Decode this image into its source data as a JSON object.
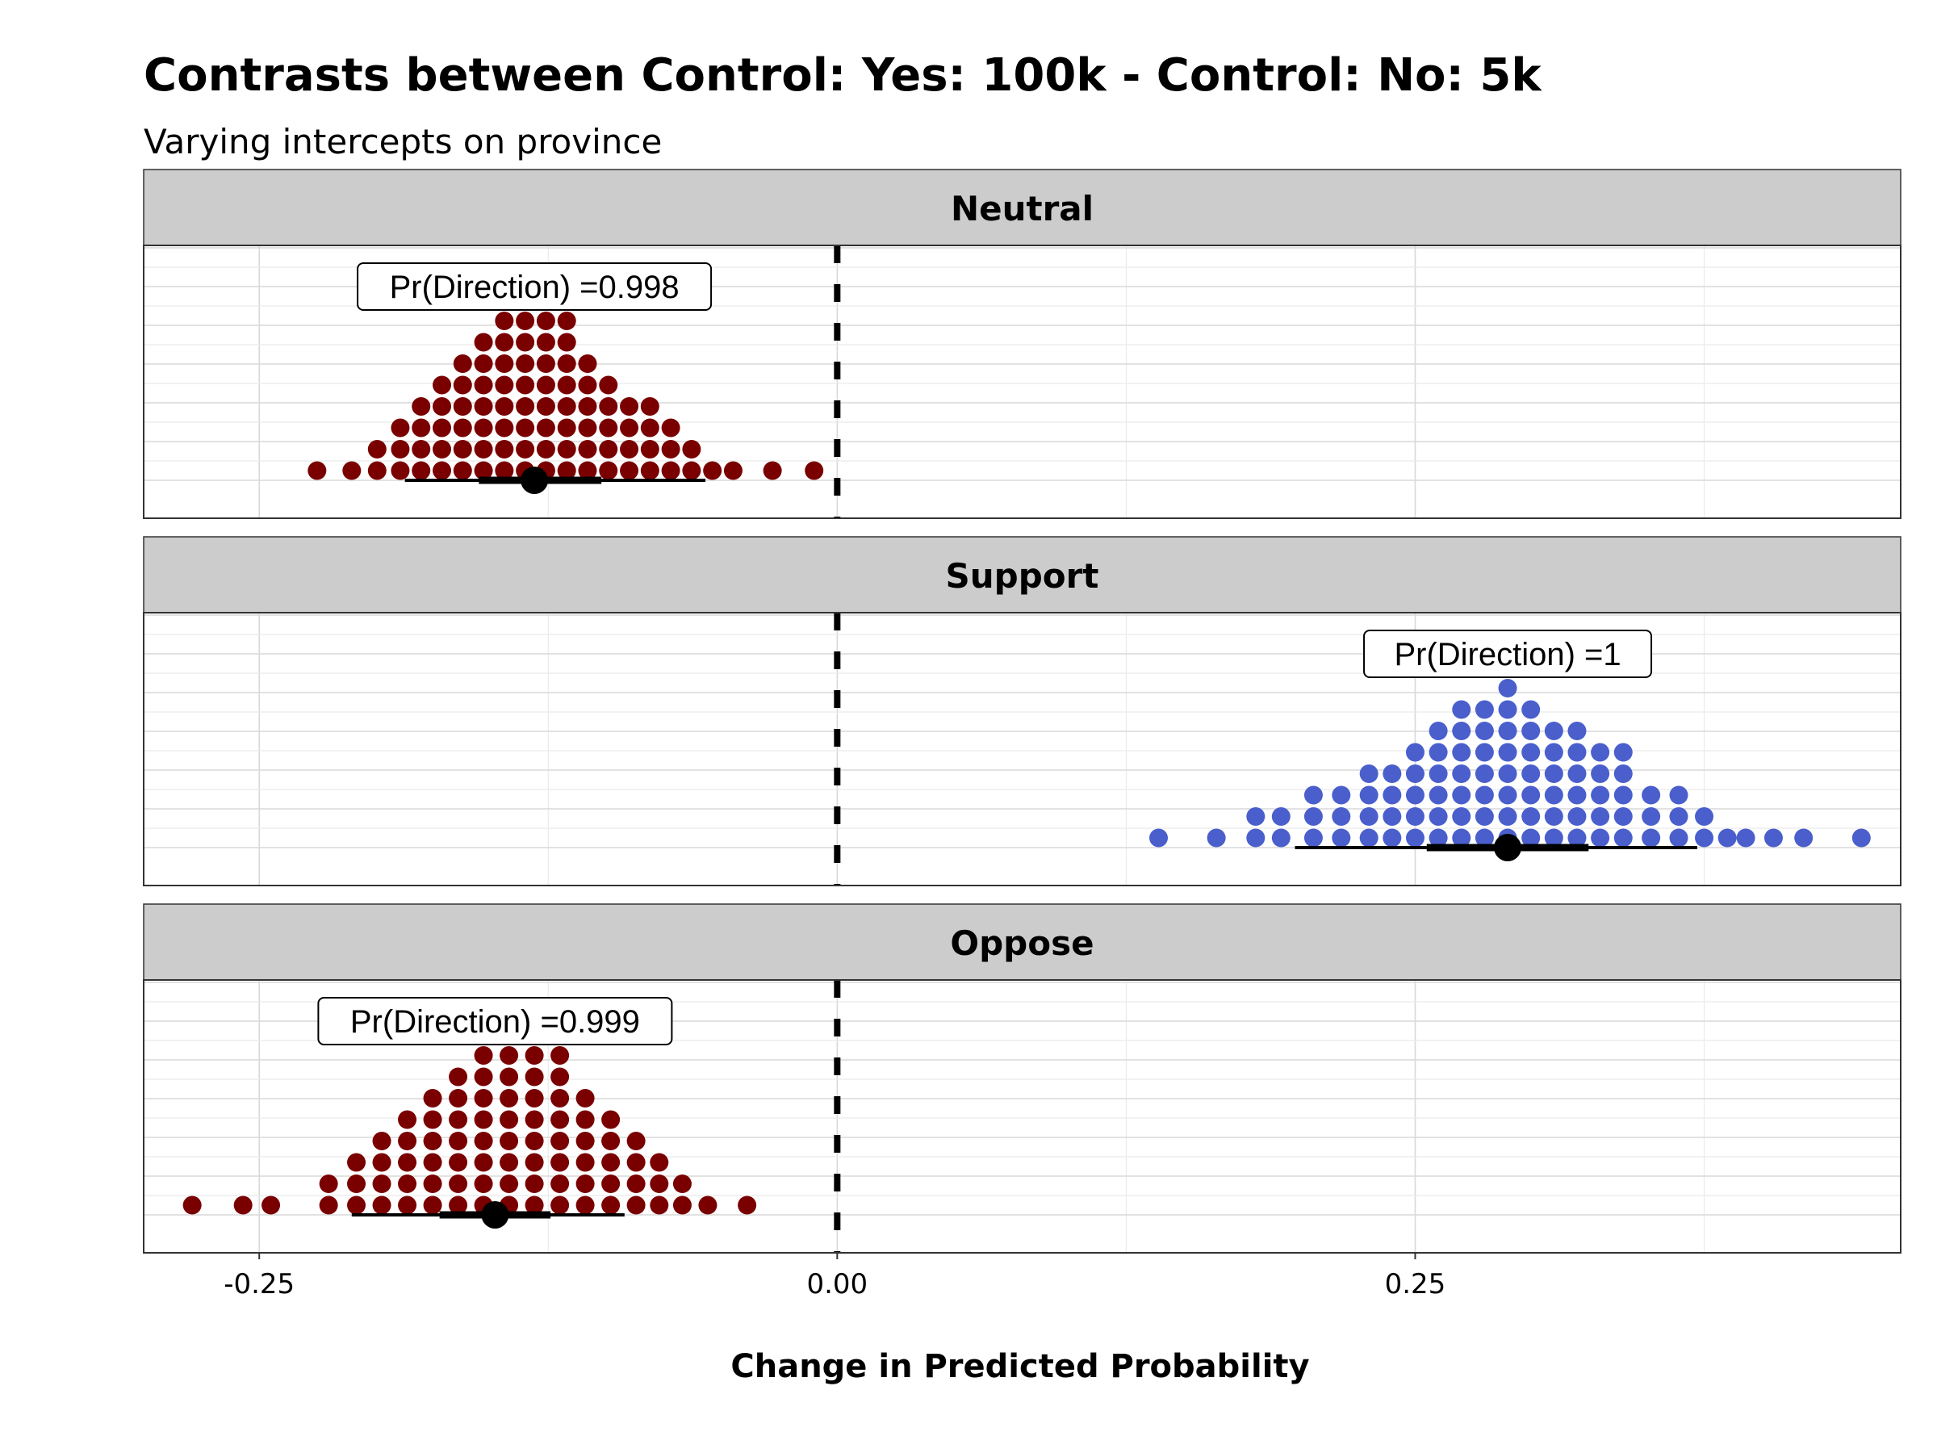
{
  "chart_data": {
    "type": "dotplot",
    "title": "Contrasts between Control: Yes: 100k - Control: No: 5k",
    "subtitle": "Varying intercepts on province",
    "xlabel": "Change in Predicted Probability",
    "xlim": [
      -0.3,
      0.46
    ],
    "x_ticks": [
      -0.25,
      0.0,
      0.25
    ],
    "x_tick_labels": [
      "-0.25",
      "0.00",
      "0.25"
    ],
    "reference_line": 0,
    "grid": true,
    "colors": {
      "negative": "#7A0000",
      "positive": "#4A5FCC",
      "strip_bg": "#CCCCCC",
      "point": "#000000"
    },
    "panels": [
      {
        "label": "Neutral",
        "annotation": "Pr(Direction) =0.998",
        "annotation_x": -0.131,
        "color": "negative",
        "median": -0.131,
        "interval_inner": [
          -0.155,
          -0.102
        ],
        "interval_outer": [
          -0.187,
          -0.057
        ],
        "dot_bins": [
          {
            "x": -0.225,
            "n": 1
          },
          {
            "x": -0.21,
            "n": 1
          },
          {
            "x": -0.199,
            "n": 2
          },
          {
            "x": -0.189,
            "n": 3
          },
          {
            "x": -0.18,
            "n": 4
          },
          {
            "x": -0.171,
            "n": 5
          },
          {
            "x": -0.162,
            "n": 6
          },
          {
            "x": -0.153,
            "n": 7
          },
          {
            "x": -0.144,
            "n": 8
          },
          {
            "x": -0.135,
            "n": 8
          },
          {
            "x": -0.126,
            "n": 8
          },
          {
            "x": -0.117,
            "n": 8
          },
          {
            "x": -0.108,
            "n": 6
          },
          {
            "x": -0.099,
            "n": 5
          },
          {
            "x": -0.09,
            "n": 4
          },
          {
            "x": -0.081,
            "n": 4
          },
          {
            "x": -0.072,
            "n": 3
          },
          {
            "x": -0.063,
            "n": 2
          },
          {
            "x": -0.054,
            "n": 1
          },
          {
            "x": -0.045,
            "n": 1
          },
          {
            "x": -0.028,
            "n": 1
          },
          {
            "x": -0.01,
            "n": 1
          }
        ]
      },
      {
        "label": "Support",
        "annotation": "Pr(Direction) =1",
        "annotation_x": 0.29,
        "color": "positive",
        "median": 0.29,
        "interval_inner": [
          0.255,
          0.325
        ],
        "interval_outer": [
          0.198,
          0.372
        ],
        "dot_bins": [
          {
            "x": 0.139,
            "n": 1
          },
          {
            "x": 0.164,
            "n": 1
          },
          {
            "x": 0.181,
            "n": 2
          },
          {
            "x": 0.192,
            "n": 2
          },
          {
            "x": 0.206,
            "n": 3
          },
          {
            "x": 0.218,
            "n": 3
          },
          {
            "x": 0.23,
            "n": 4
          },
          {
            "x": 0.24,
            "n": 4
          },
          {
            "x": 0.25,
            "n": 5
          },
          {
            "x": 0.26,
            "n": 6
          },
          {
            "x": 0.27,
            "n": 7
          },
          {
            "x": 0.28,
            "n": 7
          },
          {
            "x": 0.29,
            "n": 8
          },
          {
            "x": 0.3,
            "n": 7
          },
          {
            "x": 0.31,
            "n": 6
          },
          {
            "x": 0.32,
            "n": 6
          },
          {
            "x": 0.33,
            "n": 5
          },
          {
            "x": 0.34,
            "n": 5
          },
          {
            "x": 0.352,
            "n": 3
          },
          {
            "x": 0.364,
            "n": 3
          },
          {
            "x": 0.375,
            "n": 2
          },
          {
            "x": 0.385,
            "n": 1
          },
          {
            "x": 0.393,
            "n": 1
          },
          {
            "x": 0.405,
            "n": 1
          },
          {
            "x": 0.418,
            "n": 1
          },
          {
            "x": 0.443,
            "n": 1
          }
        ]
      },
      {
        "label": "Oppose",
        "annotation": "Pr(Direction) =0.999",
        "annotation_x": -0.148,
        "color": "negative",
        "median": -0.148,
        "interval_inner": [
          -0.172,
          -0.124
        ],
        "interval_outer": [
          -0.21,
          -0.092
        ],
        "dot_bins": [
          {
            "x": -0.279,
            "n": 1
          },
          {
            "x": -0.257,
            "n": 1
          },
          {
            "x": -0.245,
            "n": 1
          },
          {
            "x": -0.22,
            "n": 2
          },
          {
            "x": -0.208,
            "n": 3
          },
          {
            "x": -0.197,
            "n": 4
          },
          {
            "x": -0.186,
            "n": 5
          },
          {
            "x": -0.175,
            "n": 6
          },
          {
            "x": -0.164,
            "n": 7
          },
          {
            "x": -0.153,
            "n": 8
          },
          {
            "x": -0.142,
            "n": 8
          },
          {
            "x": -0.131,
            "n": 8
          },
          {
            "x": -0.12,
            "n": 8
          },
          {
            "x": -0.109,
            "n": 6
          },
          {
            "x": -0.098,
            "n": 5
          },
          {
            "x": -0.087,
            "n": 4
          },
          {
            "x": -0.077,
            "n": 3
          },
          {
            "x": -0.067,
            "n": 2
          },
          {
            "x": -0.056,
            "n": 1
          },
          {
            "x": -0.039,
            "n": 1
          }
        ]
      }
    ]
  }
}
